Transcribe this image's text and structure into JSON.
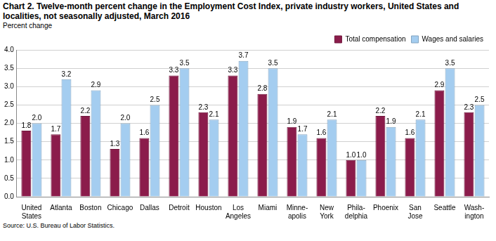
{
  "chart_data": {
    "type": "bar",
    "title": "Chart 2. Twelve-month percent change in the Employment Cost Index, private industry workers, United States and localities, not seasonally adjusted, March 2016",
    "ylabel": "Percent change",
    "source": "Source: U.S. Bureau of Labor Statistics.",
    "categories": [
      "United States",
      "Atlanta",
      "Boston",
      "Chicago",
      "Dallas",
      "Detroit",
      "Houston",
      "Los Angeles",
      "Miami",
      "Minne-apolis",
      "New York",
      "Phila-delphia",
      "Phoenix",
      "San Jose",
      "Seattle",
      "Wash-ington"
    ],
    "series": [
      {
        "name": "Total compensation",
        "color": "#8b1c4b",
        "values": [
          1.8,
          1.7,
          2.2,
          1.3,
          1.6,
          3.3,
          2.3,
          3.3,
          2.8,
          1.9,
          1.6,
          1.0,
          2.2,
          1.6,
          2.9,
          2.3
        ],
        "value_labels": [
          "1.8",
          "1.7",
          "2.2",
          "1.3",
          "1.6",
          "3.3",
          "2.3",
          "3.3",
          "2.8",
          "1.9",
          "1.6",
          "1.0",
          "2.2",
          "1.6",
          "2.9",
          "2.3"
        ]
      },
      {
        "name": "Wages and salaries",
        "color": "#a4cdf0",
        "values": [
          2.0,
          3.2,
          2.9,
          2.0,
          2.5,
          3.5,
          2.1,
          3.7,
          3.5,
          1.7,
          2.1,
          1.0,
          1.9,
          2.1,
          3.5,
          2.5
        ],
        "value_labels": [
          "2.0",
          "3.2",
          "2.9",
          "2.0",
          "2.5",
          "3.5",
          "2.1",
          "3.7",
          "3.5",
          "1.7",
          "2.1",
          "1.0",
          "1.9",
          "2.1",
          "3.5",
          "2.5"
        ]
      }
    ],
    "ylim": [
      0,
      4
    ],
    "yticks": [
      {
        "value": 0,
        "label": "0.0"
      },
      0.5,
      {
        "value": 1,
        "label": "1.0"
      },
      1.5,
      {
        "value": 2,
        "label": "2.0"
      },
      2.5,
      {
        "value": 3,
        "label": "3.0"
      },
      3.5,
      {
        "value": 4,
        "label": "4.0"
      }
    ],
    "grid": true,
    "legend": "upper right",
    "data_labels": true
  }
}
